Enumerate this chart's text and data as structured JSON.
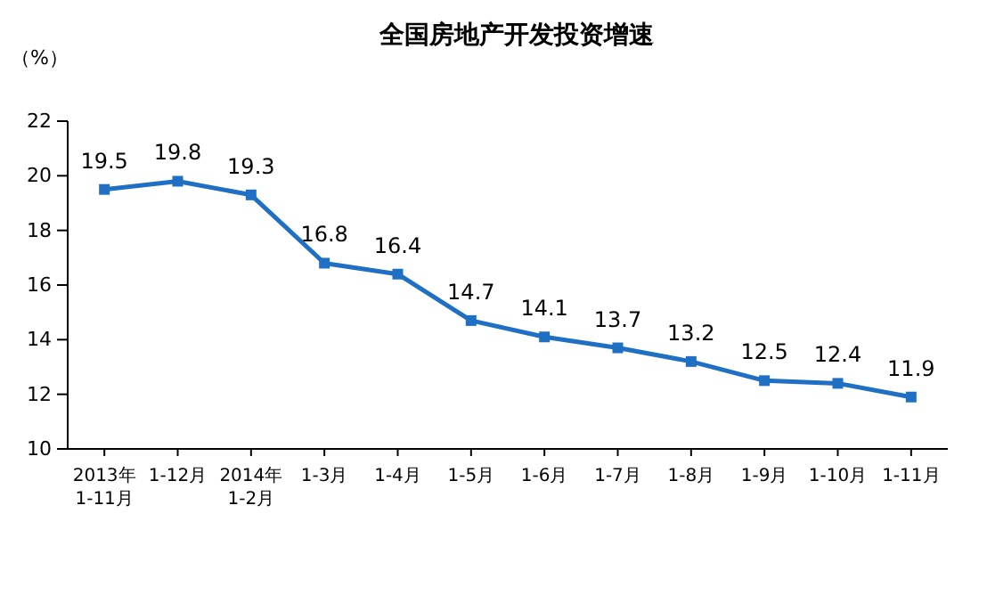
{
  "chart_data": {
    "type": "line",
    "title": "全国房地产开发投资增速",
    "ylabel": "（%）",
    "categories": [
      "2013年\n1-11月",
      "1-12月",
      "2014年\n1-2月",
      "1-3月",
      "1-4月",
      "1-5月",
      "1-6月",
      "1-7月",
      "1-8月",
      "1-9月",
      "1-10月",
      "1-11月"
    ],
    "series": [
      {
        "color": "#1f6fc4",
        "values": [
          19.5,
          19.8,
          19.3,
          16.8,
          16.4,
          14.7,
          14.1,
          13.7,
          13.2,
          12.5,
          12.4,
          11.9
        ]
      }
    ],
    "ylim": [
      10,
      22
    ],
    "yticks": [
      10,
      12,
      14,
      16,
      18,
      20,
      22
    ],
    "data_labels": true,
    "marker": "square",
    "grid": false
  }
}
